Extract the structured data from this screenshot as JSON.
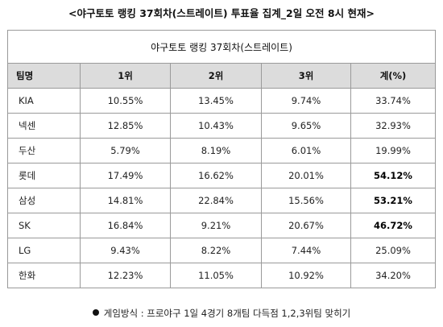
{
  "title": "<야구토토 랭킹 37회차(스트레이트) 투표율 집계_2일 오전 8시 현재>",
  "table": {
    "caption": "야구토토 랭킹 37회차(스트레이트)",
    "headers": [
      "팀명",
      "1위",
      "2위",
      "3위",
      "계(%)"
    ],
    "rows": [
      {
        "team": "KIA",
        "r1": "10.55%",
        "r2": "13.45%",
        "r3": "9.74%",
        "total": "33.74%",
        "bold": false
      },
      {
        "team": "넥센",
        "r1": "12.85%",
        "r2": "10.43%",
        "r3": "9.65%",
        "total": "32.93%",
        "bold": false
      },
      {
        "team": "두산",
        "r1": "5.79%",
        "r2": "8.19%",
        "r3": "6.01%",
        "total": "19.99%",
        "bold": false
      },
      {
        "team": "롯데",
        "r1": "17.49%",
        "r2": "16.62%",
        "r3": "20.01%",
        "total": "54.12%",
        "bold": true
      },
      {
        "team": "삼성",
        "r1": "14.81%",
        "r2": "22.84%",
        "r3": "15.56%",
        "total": "53.21%",
        "bold": true
      },
      {
        "team": "SK",
        "r1": "16.84%",
        "r2": "9.21%",
        "r3": "20.67%",
        "total": "46.72%",
        "bold": true
      },
      {
        "team": "LG",
        "r1": "9.43%",
        "r2": "8.22%",
        "r3": "7.44%",
        "total": "25.09%",
        "bold": false
      },
      {
        "team": "한화",
        "r1": "12.23%",
        "r2": "11.05%",
        "r3": "10.92%",
        "total": "34.20%",
        "bold": false
      }
    ]
  },
  "footnote": "게임방식 : 프로야구 1일 4경기 8개팀 다득점 1,2,3위팀 맞히기",
  "colors": {
    "header_bg": "#dcdcdc",
    "border": "#9a9a9a"
  }
}
